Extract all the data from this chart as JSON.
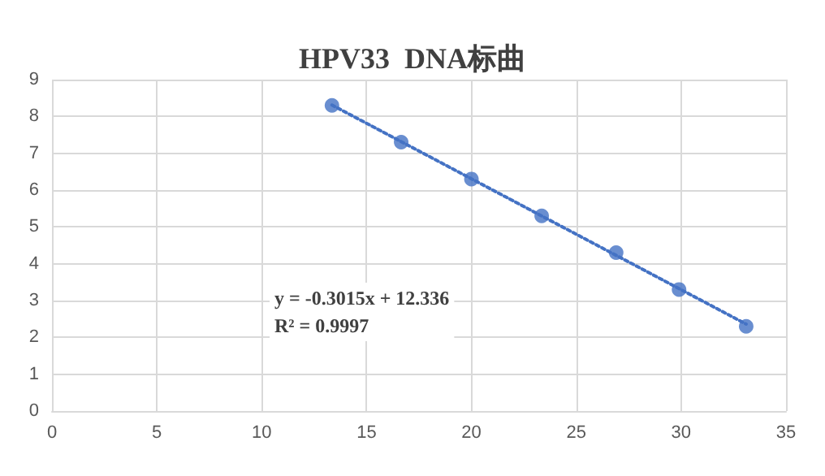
{
  "chart_data": {
    "type": "scatter",
    "title": "HPV33  DNA标曲",
    "xlim": [
      0,
      35
    ],
    "xticks": [
      0,
      5,
      10,
      15,
      20,
      25,
      30,
      35
    ],
    "ylim": [
      0,
      9
    ],
    "yticks": [
      0,
      1,
      2,
      3,
      4,
      5,
      6,
      7,
      8,
      9
    ],
    "grid": true,
    "marker": "circle",
    "series": [
      {
        "color": "#4472c4",
        "x": [
          13.35,
          16.65,
          20.0,
          23.35,
          26.9,
          29.9,
          33.1
        ],
        "values": [
          8.3,
          7.3,
          6.3,
          5.3,
          4.3,
          3.3,
          2.3
        ]
      },
      {
        "type": "line",
        "color": "#4472c4",
        "line_style": "dotted",
        "marker": "none",
        "x": [
          13.35,
          33.1
        ],
        "values": [
          8.31,
          2.36
        ]
      }
    ],
    "annotations": [
      "y = -0.3015x + 12.336",
      "R² = 0.9997"
    ]
  }
}
